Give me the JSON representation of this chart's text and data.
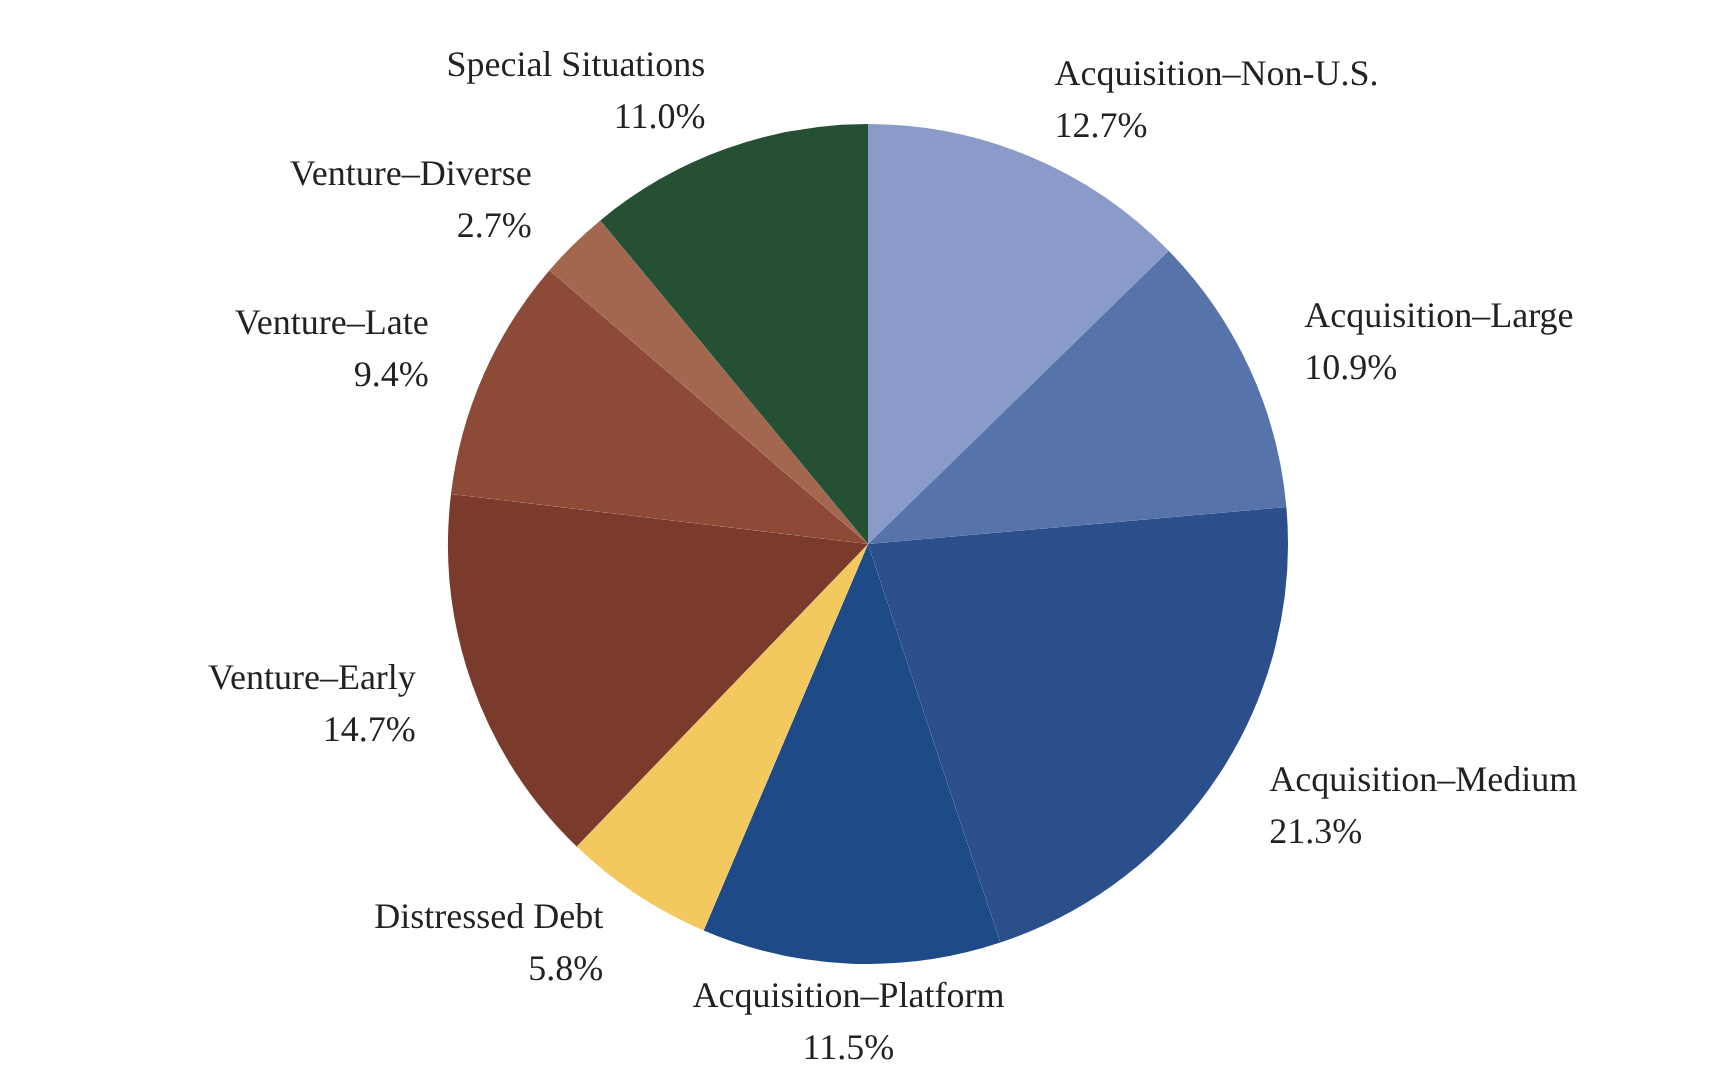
{
  "chart_data": {
    "type": "pie",
    "categories": [
      "Acquisition–Non-U.S.",
      "Acquisition–Large",
      "Acquisition–Medium",
      "Acquisition–Platform",
      "Distressed Debt",
      "Venture–Early",
      "Venture–Late",
      "Venture–Diverse",
      "Special Situations"
    ],
    "values": [
      12.7,
      10.9,
      21.3,
      11.5,
      5.8,
      14.7,
      9.4,
      2.7,
      11.0
    ],
    "value_labels": [
      "12.7%",
      "10.9%",
      "21.3%",
      "11.5%",
      "5.8%",
      "14.7%",
      "9.4%",
      "2.7%",
      "11.0%"
    ],
    "colors": [
      "#8a9bc9",
      "#5674a9",
      "#2b4f8b",
      "#1f4a88",
      "#f3c85e",
      "#7b3b2c",
      "#8c4a37",
      "#a3674f",
      "#255034"
    ],
    "legend": false
  }
}
